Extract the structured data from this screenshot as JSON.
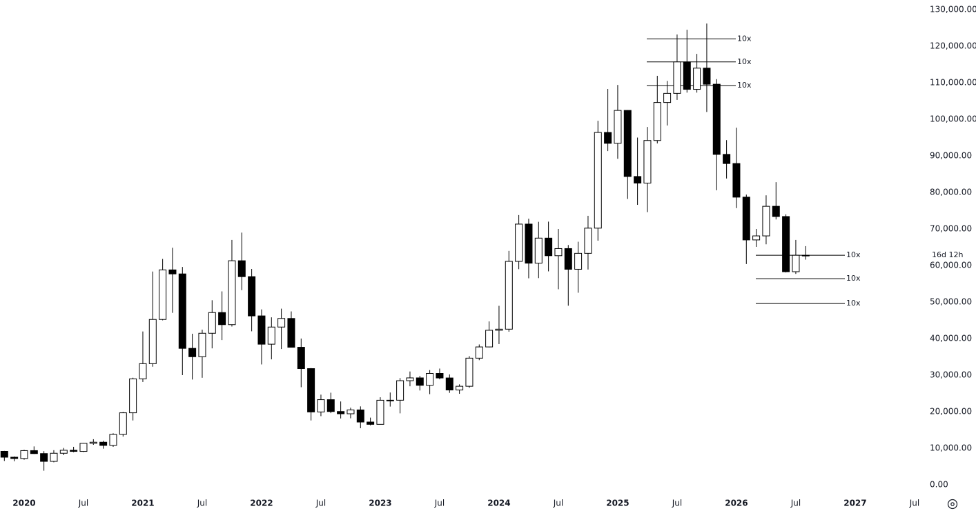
{
  "chart_data": {
    "type": "candlestick",
    "categories": [
      null,
      null,
      "2020",
      null,
      null,
      null,
      null,
      null,
      "Jul",
      null,
      null,
      null,
      null,
      null,
      "2021",
      null,
      null,
      null,
      null,
      null,
      "Jul",
      null,
      null,
      null,
      null,
      null,
      "2022",
      null,
      null,
      null,
      null,
      null,
      "Jul",
      null,
      null,
      null,
      null,
      null,
      "2023",
      null,
      null,
      null,
      null,
      null,
      "Jul",
      null,
      null,
      null,
      null,
      null,
      "2024",
      null,
      null,
      null,
      null,
      null,
      "Jul",
      null,
      null,
      null,
      null,
      null,
      "2025",
      null,
      null,
      null,
      null,
      null,
      "Jul",
      null,
      null,
      null,
      null,
      null,
      "2026",
      null,
      null,
      null,
      null,
      null,
      "Jul",
      null,
      null,
      null,
      null,
      null,
      "2027",
      null,
      null,
      null,
      null,
      null,
      "Jul"
    ],
    "open": [
      9150,
      7550,
      7190,
      9350,
      8540,
      6410,
      8630,
      9450,
      9140,
      11350,
      11650,
      10780,
      13790,
      19700,
      28990,
      33140,
      45240,
      58800,
      57700,
      37330,
      35040,
      41460,
      47130,
      43820,
      61300,
      56950,
      46210,
      38470,
      43160,
      45510,
      37630,
      31790,
      19930,
      23290,
      20050,
      19430,
      20490,
      17170,
      16540,
      23130,
      23140,
      28480,
      29250,
      27220,
      30470,
      29230,
      25940,
      26960,
      34650,
      37720,
      42280,
      42580,
      61130,
      71330,
      60640,
      67490,
      62680,
      64630,
      58970,
      63330,
      70220,
      96400,
      93430,
      102430,
      84350,
      82550,
      94200,
      104600,
      107100,
      115700,
      108200,
      114000,
      109600,
      90400,
      87900,
      78700,
      67000,
      68100,
      76200,
      73400,
      58300,
      62800,
      null,
      null,
      null,
      null,
      null,
      null,
      null,
      null,
      null,
      null,
      null
    ],
    "high": [
      9280,
      7750,
      9580,
      10500,
      9200,
      9470,
      10080,
      10390,
      11440,
      12470,
      12050,
      14100,
      19920,
      29300,
      41950,
      58350,
      61790,
      64850,
      59600,
      41330,
      42450,
      50500,
      52920,
      67000,
      69000,
      59050,
      47990,
      45820,
      48190,
      47440,
      40020,
      31950,
      24670,
      25200,
      22800,
      21100,
      21450,
      18380,
      23950,
      25250,
      29200,
      31000,
      29820,
      31390,
      31800,
      30200,
      27480,
      35200,
      38400,
      44700,
      48970,
      64000,
      73800,
      72800,
      71950,
      72000,
      70000,
      65600,
      66500,
      73600,
      99600,
      108300,
      109400,
      102500,
      95000,
      97900,
      111900,
      110500,
      123200,
      124500,
      117900,
      126200,
      111000,
      94300,
      97700,
      79400,
      70000,
      79200,
      82800,
      74000,
      67000,
      65300,
      null,
      null,
      null,
      null,
      null,
      null,
      null,
      null,
      null,
      null,
      null
    ],
    "low": [
      6520,
      6430,
      6850,
      8440,
      3850,
      6150,
      8110,
      8900,
      8970,
      10940,
      9880,
      10380,
      13200,
      17600,
      28130,
      32300,
      45000,
      47040,
      30000,
      28800,
      29280,
      37330,
      39600,
      43300,
      53250,
      42000,
      32930,
      34320,
      37150,
      37690,
      26700,
      17600,
      18780,
      19600,
      18150,
      18190,
      15480,
      16260,
      16500,
      21400,
      19550,
      26950,
      25800,
      24800,
      28860,
      25150,
      24900,
      26550,
      34100,
      37600,
      38500,
      41880,
      59000,
      56500,
      56550,
      58400,
      53500,
      49000,
      52550,
      58900,
      66800,
      91300,
      89200,
      78200,
      76600,
      74600,
      93400,
      98300,
      105300,
      107300,
      107300,
      102000,
      80600,
      83800,
      75700,
      60400,
      65100,
      65800,
      72600,
      58100,
      57700,
      61600,
      null,
      null,
      null,
      null,
      null,
      null,
      null,
      null,
      null,
      null,
      null
    ],
    "close": [
      7550,
      7190,
      9350,
      8540,
      6410,
      8630,
      9450,
      9140,
      11350,
      11650,
      10780,
      13790,
      19700,
      28990,
      33140,
      45240,
      58800,
      57700,
      37330,
      35040,
      41460,
      47130,
      43820,
      61300,
      56950,
      46210,
      38470,
      43160,
      45510,
      37630,
      31790,
      19930,
      23290,
      20050,
      19430,
      20490,
      17170,
      16540,
      23130,
      23140,
      28480,
      29250,
      27220,
      30470,
      29230,
      25940,
      26960,
      34650,
      37720,
      42280,
      42580,
      61130,
      71330,
      60640,
      67490,
      62680,
      64630,
      58970,
      63330,
      70220,
      96400,
      93430,
      102430,
      84350,
      82550,
      94200,
      104600,
      107100,
      115700,
      108200,
      114000,
      109600,
      90400,
      87900,
      78700,
      67000,
      68100,
      76200,
      73400,
      58300,
      62800,
      62800,
      null,
      null,
      null,
      null,
      null,
      null,
      null,
      null,
      null,
      null,
      null
    ],
    "up_color": "#ffffff",
    "down_color": "#000000",
    "ylim": [
      0,
      130000
    ],
    "yticks": [
      {
        "value": 0,
        "label": "0.00"
      },
      {
        "value": 10000,
        "label": "10,000.00"
      },
      {
        "value": 20000,
        "label": "20,000.00"
      },
      {
        "value": 30000,
        "label": "30,000.00"
      },
      {
        "value": 40000,
        "label": "40,000.00"
      },
      {
        "value": 50000,
        "label": "50,000.00"
      },
      {
        "value": 60000,
        "label": "60,000.00"
      },
      {
        "value": 70000,
        "label": "70,000.00"
      },
      {
        "value": 80000,
        "label": "80,000.00"
      },
      {
        "value": 90000,
        "label": "90,000.00"
      },
      {
        "value": 100000,
        "label": "100,000.00"
      },
      {
        "value": 110000,
        "label": "110,000.00"
      },
      {
        "value": 120000,
        "label": "120,000.00"
      },
      {
        "value": 130000,
        "label": "130,000.00"
      }
    ],
    "grid": false,
    "levels": [
      {
        "value": 122000,
        "label": "10x"
      },
      {
        "value": 115700,
        "label": "10x"
      },
      {
        "value": 109200,
        "label": "10x"
      },
      {
        "value": 62800,
        "label": "10x"
      },
      {
        "value": 56400,
        "label": "10x"
      },
      {
        "value": 49600,
        "label": "10x"
      }
    ],
    "countdown": "16d 12h"
  }
}
